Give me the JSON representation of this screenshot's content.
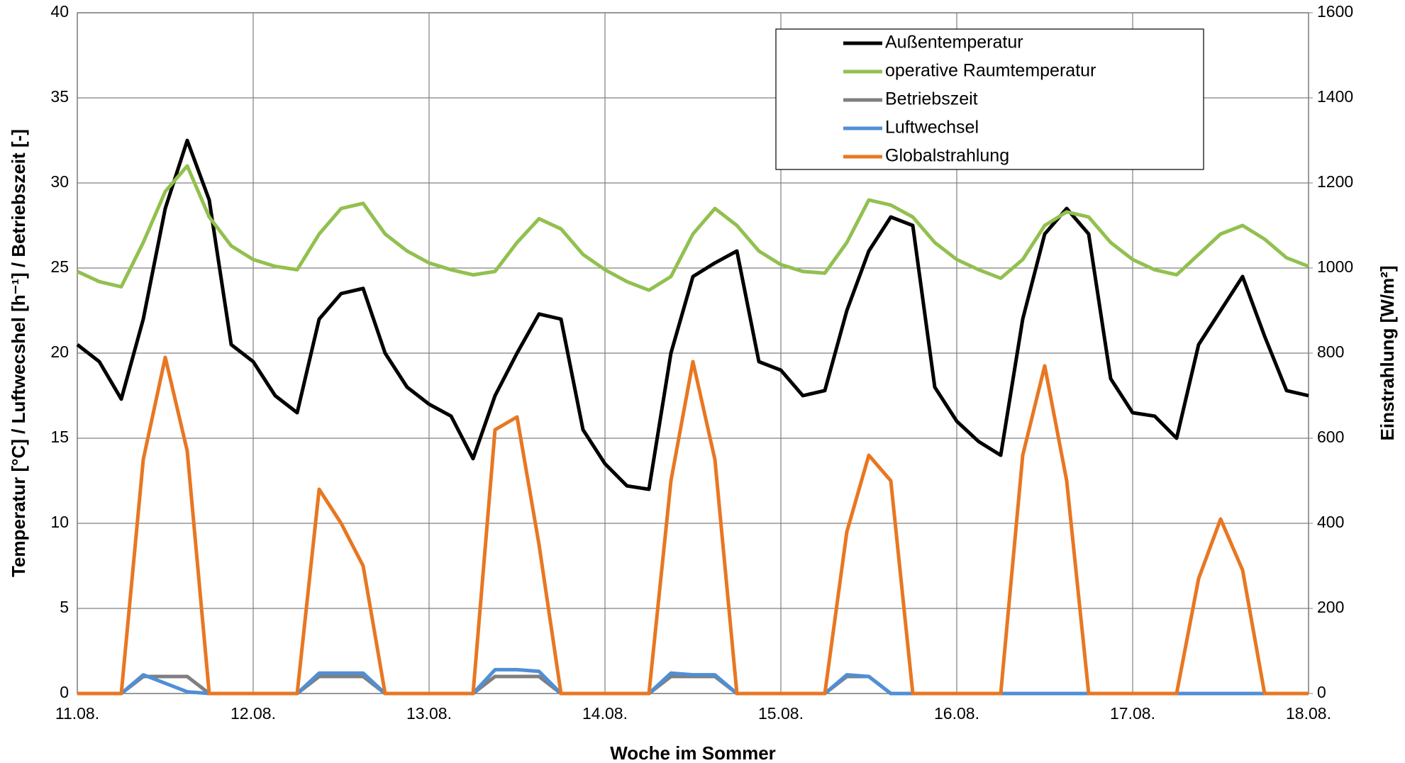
{
  "chart_data": {
    "type": "line",
    "xlabel": "Woche im Sommer",
    "ylabel": "Temperatur  [°C] / Luftwecshel [h⁻¹] / Betriebszeit [-]",
    "y2label": "Einstrahlung  [W/m²]",
    "x": [
      0,
      0.125,
      0.25,
      0.375,
      0.5,
      0.625,
      0.75,
      0.875,
      1,
      1.125,
      1.25,
      1.375,
      1.5,
      1.625,
      1.75,
      1.875,
      2,
      2.125,
      2.25,
      2.375,
      2.5,
      2.625,
      2.75,
      2.875,
      3,
      3.125,
      3.25,
      3.375,
      3.5,
      3.625,
      3.75,
      3.875,
      4,
      4.125,
      4.25,
      4.375,
      4.5,
      4.625,
      4.75,
      4.875,
      5,
      5.125,
      5.25,
      5.375,
      5.5,
      5.625,
      5.75,
      5.875,
      6,
      6.125,
      6.25,
      6.375,
      6.5,
      6.625,
      6.75,
      6.875,
      7
    ],
    "xlim": [
      0,
      7
    ],
    "xticks": [
      {
        "value": 0,
        "label": "11.08."
      },
      {
        "value": 1,
        "label": "12.08."
      },
      {
        "value": 2,
        "label": "13.08."
      },
      {
        "value": 3,
        "label": "14.08."
      },
      {
        "value": 4,
        "label": "15.08."
      },
      {
        "value": 5,
        "label": "16.08."
      },
      {
        "value": 6,
        "label": "17.08."
      },
      {
        "value": 7,
        "label": "18.08."
      }
    ],
    "ylim": [
      0,
      40
    ],
    "yticks": [
      0,
      5,
      10,
      15,
      20,
      25,
      30,
      35,
      40
    ],
    "y2lim": [
      0,
      1600
    ],
    "y2ticks": [
      0,
      200,
      400,
      600,
      800,
      1000,
      1200,
      1400,
      1600
    ],
    "grid": true,
    "legend": "upper right",
    "series": [
      {
        "name": "Außentemperatur",
        "color": "#000000",
        "values": [
          20.5,
          19.5,
          17.3,
          22,
          28.5,
          32.5,
          29,
          20.5,
          19.5,
          17.5,
          16.5,
          22,
          23.5,
          23.8,
          20,
          18,
          17,
          16.3,
          13.8,
          17.5,
          20,
          22.3,
          22,
          15.5,
          13.5,
          12.2,
          12,
          20,
          24.5,
          25.3,
          26,
          19.5,
          19,
          17.5,
          17.8,
          22.5,
          26,
          28,
          27.5,
          18,
          16,
          14.8,
          14,
          22,
          27,
          28.5,
          27,
          18.5,
          16.5,
          16.3,
          15,
          20.5,
          22.5,
          24.5,
          21,
          17.8,
          17.5
        ]
      },
      {
        "name": "operative Raumtemperatur",
        "color": "#92c050",
        "values": [
          24.8,
          24.2,
          23.9,
          26.5,
          29.5,
          31,
          28,
          26.3,
          25.5,
          25.1,
          24.9,
          27,
          28.5,
          28.8,
          27,
          26,
          25.3,
          24.9,
          24.6,
          24.8,
          26.5,
          27.9,
          27.3,
          25.8,
          24.9,
          24.2,
          23.7,
          24.5,
          27,
          28.5,
          27.5,
          26,
          25.2,
          24.8,
          24.7,
          26.5,
          29,
          28.7,
          28,
          26.5,
          25.5,
          24.9,
          24.4,
          25.5,
          27.5,
          28.3,
          28,
          26.5,
          25.5,
          24.9,
          24.6,
          25.8,
          27,
          27.5,
          26.7,
          25.6,
          25.1
        ]
      },
      {
        "name": "Betriebszeit",
        "color": "#7f7f7f",
        "values": [
          0,
          0,
          0,
          1,
          1,
          1,
          0,
          0,
          0,
          0,
          0,
          1,
          1,
          1,
          0,
          0,
          0,
          0,
          0,
          1,
          1,
          1,
          0,
          0,
          0,
          0,
          0,
          1,
          1,
          1,
          0,
          0,
          0,
          0,
          0,
          1,
          1,
          0,
          0,
          0,
          0,
          0,
          0,
          0,
          0,
          0,
          0,
          0,
          0,
          0,
          0,
          0,
          0,
          0,
          0,
          0,
          0
        ]
      },
      {
        "name": "Luftwechsel",
        "color": "#4f8fd6",
        "values": [
          0,
          0,
          0,
          1.1,
          0.6,
          0.1,
          0,
          0,
          0,
          0,
          0,
          1.2,
          1.2,
          1.2,
          0,
          0,
          0,
          0,
          0,
          1.4,
          1.4,
          1.3,
          0,
          0,
          0,
          0,
          0,
          1.2,
          1.1,
          1.1,
          0,
          0,
          0,
          0,
          0,
          1.1,
          1.0,
          0,
          0,
          0,
          0,
          0,
          0,
          0,
          0,
          0,
          0,
          0,
          0,
          0,
          0,
          0,
          0,
          0,
          0,
          0,
          0
        ]
      },
      {
        "name": "Globalstrahlung",
        "color": "#e87722",
        "axis": "y2",
        "values": [
          0,
          0,
          0,
          550,
          790,
          570,
          0,
          0,
          0,
          0,
          0,
          480,
          400,
          300,
          0,
          0,
          0,
          0,
          0,
          620,
          650,
          350,
          0,
          0,
          0,
          0,
          0,
          500,
          780,
          550,
          0,
          0,
          0,
          0,
          0,
          380,
          560,
          500,
          0,
          0,
          0,
          0,
          0,
          560,
          770,
          500,
          0,
          0,
          0,
          0,
          0,
          270,
          410,
          290,
          0,
          0,
          0
        ]
      }
    ]
  }
}
